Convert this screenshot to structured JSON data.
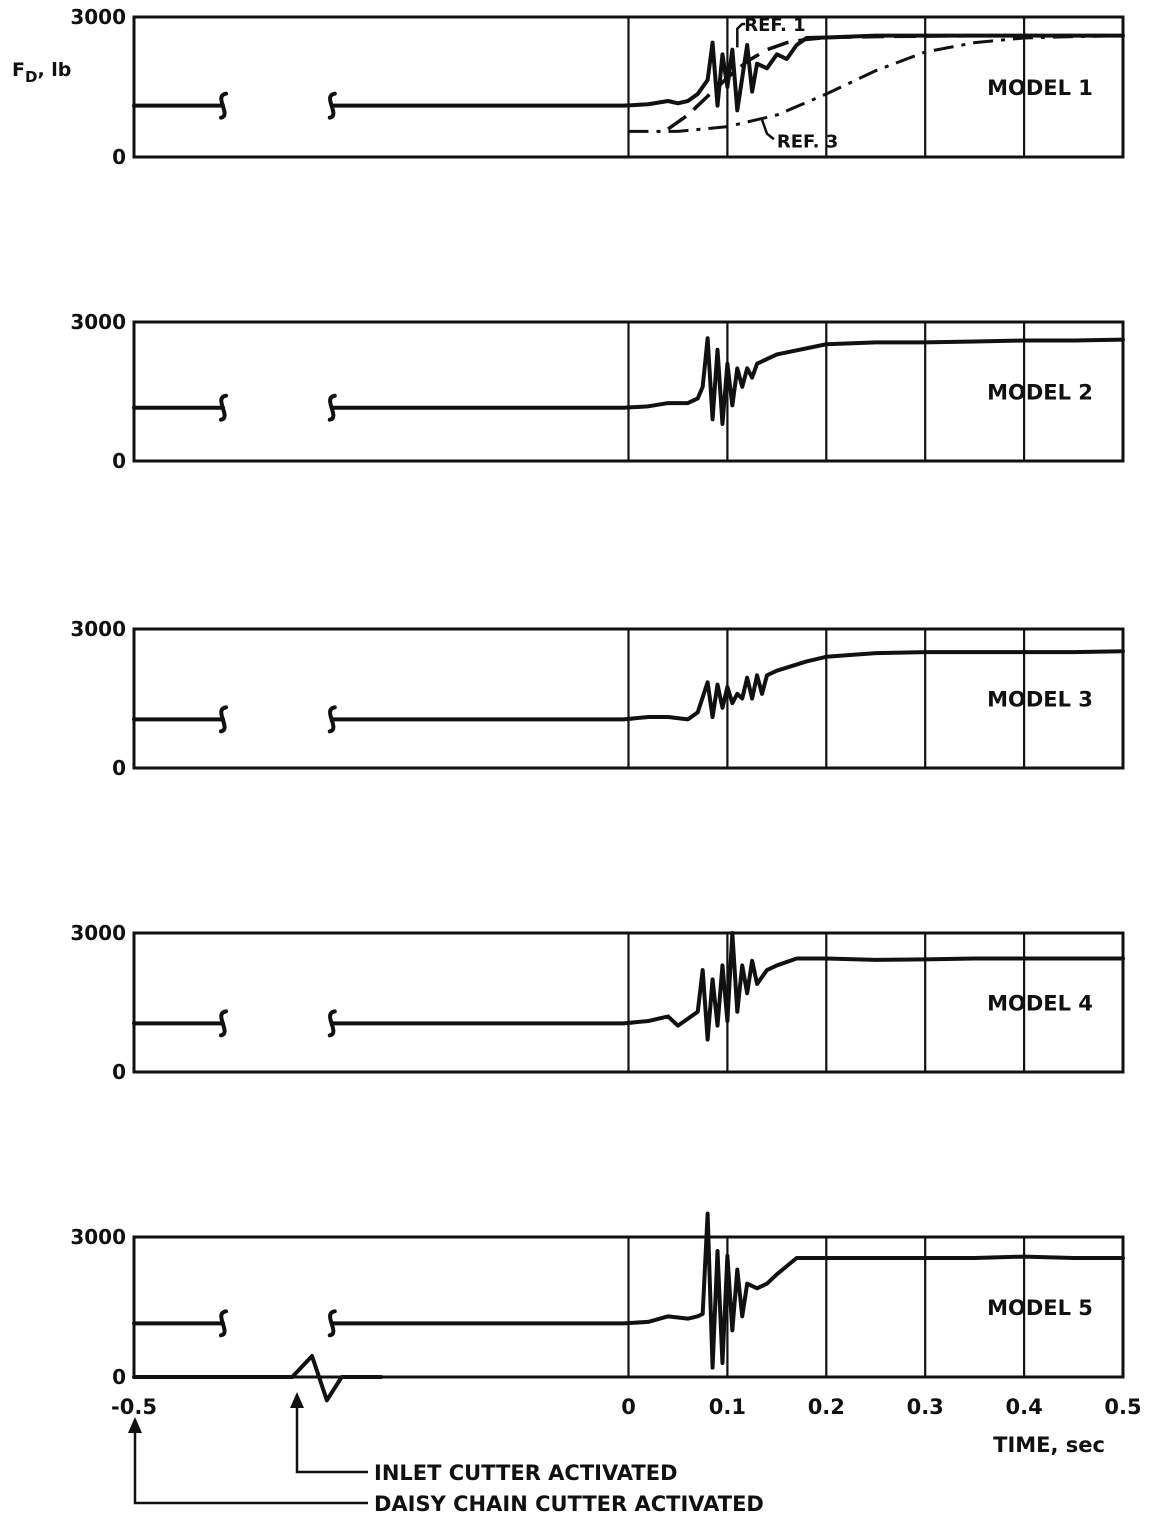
{
  "chart_data": {
    "type": "line",
    "shared_x": {
      "xlabel": "TIME, sec",
      "xlim": [
        -0.5,
        0.5
      ],
      "ticks": [
        -0.5,
        0,
        0.1,
        0.2,
        0.3,
        0.4,
        0.5
      ],
      "tick_labels": [
        "-0.5",
        "0",
        "0.1",
        "0.2",
        "0.3",
        "0.4",
        "0.5"
      ],
      "vertical_gridlines": [
        0,
        0.1,
        0.2,
        0.3,
        0.4
      ]
    },
    "ylabel": "F_D, lb",
    "ylabel_main": "F",
    "ylabel_sub": "D",
    "ylabel_tail": ", lb",
    "ylim": [
      0,
      3000
    ],
    "y_ticks": [
      0,
      3000
    ],
    "y_tick_labels": [
      "0",
      "3000"
    ],
    "annotations": {
      "inlet": "INLET CUTTER ACTIVATED",
      "inlet_x": 0,
      "daisy": "DAISY CHAIN CUTTER ACTIVATED",
      "daisy_x": -0.5
    },
    "panels": [
      {
        "label": "MODEL 1",
        "series": [
          {
            "name": "",
            "style": "solid",
            "x": [
              -0.5,
              -0.48,
              -0.44,
              -0.41,
              -0.4,
              -0.37,
              -0.34,
              -0.3,
              -0.2,
              -0.1,
              -0.005,
              0.02,
              0.04,
              0.05,
              0.06,
              0.07,
              0.08,
              0.085,
              0.09,
              0.095,
              0.1,
              0.105,
              0.11,
              0.115,
              0.12,
              0.125,
              0.13,
              0.14,
              0.15,
              0.16,
              0.17,
              0.18,
              0.2,
              0.25,
              0.3,
              0.35,
              0.4,
              0.45,
              0.5
            ],
            "y": [
              1100,
              1100,
              1100,
              1100,
              1100,
              1100,
              1100,
              1100,
              1100,
              1100,
              1100,
              1130,
              1200,
              1150,
              1200,
              1350,
              1650,
              2450,
              1100,
              2200,
              1500,
              2300,
              1000,
              1700,
              2400,
              1400,
              2000,
              1900,
              2200,
              2100,
              2400,
              2550,
              2560,
              2600,
              2600,
              2600,
              2600,
              2600,
              2600
            ]
          },
          {
            "name": "REF. 1",
            "style": "dashed",
            "x": [
              0.04,
              0.06,
              0.08,
              0.1,
              0.12,
              0.14,
              0.16,
              0.18,
              0.2,
              0.25,
              0.3,
              0.35,
              0.4,
              0.45,
              0.5
            ],
            "y": [
              600,
              900,
              1300,
              1700,
              2050,
              2300,
              2450,
              2520,
              2560,
              2580,
              2590,
              2600,
              2600,
              2600,
              2600
            ]
          },
          {
            "name": "REF. 3",
            "style": "dash-dot",
            "x": [
              0,
              0.05,
              0.1,
              0.15,
              0.2,
              0.25,
              0.3,
              0.35,
              0.4,
              0.45,
              0.5
            ],
            "y": [
              550,
              550,
              650,
              900,
              1350,
              1850,
              2250,
              2450,
              2550,
              2580,
              2600
            ]
          }
        ]
      },
      {
        "label": "MODEL 2",
        "series": [
          {
            "name": "",
            "style": "solid",
            "x": [
              -0.5,
              -0.48,
              -0.44,
              -0.41,
              -0.4,
              -0.3,
              -0.28,
              -0.26,
              -0.2,
              -0.1,
              -0.005,
              0.02,
              0.04,
              0.06,
              0.07,
              0.075,
              0.08,
              0.085,
              0.09,
              0.095,
              0.1,
              0.105,
              0.11,
              0.115,
              0.12,
              0.125,
              0.13,
              0.15,
              0.2,
              0.25,
              0.3,
              0.35,
              0.4,
              0.45,
              0.5
            ],
            "y": [
              1150,
              1150,
              1150,
              1150,
              1150,
              1150,
              1150,
              1150,
              1150,
              1150,
              1150,
              1180,
              1250,
              1250,
              1350,
              1600,
              2650,
              900,
              2400,
              800,
              2100,
              1200,
              2000,
              1600,
              2000,
              1800,
              2100,
              2300,
              2520,
              2560,
              2560,
              2580,
              2600,
              2600,
              2620
            ]
          }
        ]
      },
      {
        "label": "MODEL 3",
        "series": [
          {
            "name": "",
            "style": "solid",
            "x": [
              -0.5,
              -0.48,
              -0.44,
              -0.41,
              -0.4,
              -0.3,
              -0.28,
              -0.26,
              -0.2,
              -0.1,
              -0.005,
              0.02,
              0.04,
              0.06,
              0.07,
              0.08,
              0.085,
              0.09,
              0.095,
              0.1,
              0.105,
              0.11,
              0.115,
              0.12,
              0.125,
              0.13,
              0.135,
              0.14,
              0.15,
              0.18,
              0.2,
              0.25,
              0.3,
              0.35,
              0.4,
              0.45,
              0.5
            ],
            "y": [
              1050,
              1050,
              1050,
              1050,
              1050,
              1050,
              1050,
              1050,
              1050,
              1050,
              1050,
              1100,
              1100,
              1050,
              1200,
              1850,
              1100,
              1800,
              1300,
              1750,
              1400,
              1600,
              1500,
              1950,
              1500,
              2000,
              1600,
              2000,
              2100,
              2300,
              2400,
              2480,
              2500,
              2500,
              2500,
              2500,
              2520
            ]
          }
        ]
      },
      {
        "label": "MODEL 4",
        "series": [
          {
            "name": "",
            "style": "solid",
            "x": [
              -0.5,
              -0.48,
              -0.44,
              -0.41,
              -0.4,
              -0.3,
              -0.28,
              -0.26,
              -0.2,
              -0.1,
              -0.005,
              0.02,
              0.04,
              0.05,
              0.06,
              0.07,
              0.075,
              0.08,
              0.085,
              0.09,
              0.095,
              0.1,
              0.105,
              0.11,
              0.115,
              0.12,
              0.125,
              0.13,
              0.14,
              0.15,
              0.17,
              0.2,
              0.25,
              0.3,
              0.35,
              0.4,
              0.45,
              0.5
            ],
            "y": [
              1050,
              1050,
              1050,
              1050,
              1050,
              1050,
              1050,
              1050,
              1050,
              1050,
              1050,
              1100,
              1200,
              1000,
              1150,
              1300,
              2200,
              700,
              2000,
              1000,
              2300,
              1100,
              3000,
              1300,
              2300,
              1700,
              2400,
              1900,
              2200,
              2300,
              2450,
              2450,
              2420,
              2430,
              2450,
              2450,
              2450,
              2450
            ]
          }
        ]
      },
      {
        "label": "MODEL 5",
        "series": [
          {
            "name": "",
            "style": "solid",
            "x": [
              -0.5,
              -0.48,
              -0.44,
              -0.41,
              -0.4,
              -0.3,
              -0.28,
              -0.26,
              -0.2,
              -0.1,
              -0.005,
              0.02,
              0.04,
              0.06,
              0.07,
              0.075,
              0.08,
              0.085,
              0.09,
              0.095,
              0.1,
              0.105,
              0.11,
              0.115,
              0.12,
              0.13,
              0.14,
              0.15,
              0.17,
              0.2,
              0.25,
              0.3,
              0.35,
              0.4,
              0.45,
              0.5
            ],
            "y": [
              1150,
              1150,
              1150,
              1150,
              1150,
              1150,
              1150,
              1150,
              1150,
              1150,
              1150,
              1180,
              1300,
              1250,
              1300,
              1350,
              3500,
              200,
              2700,
              300,
              2600,
              1000,
              2300,
              1300,
              2000,
              1900,
              2000,
              2200,
              2550,
              2550,
              2550,
              2550,
              2550,
              2580,
              2550,
              2550
            ]
          }
        ]
      }
    ]
  }
}
